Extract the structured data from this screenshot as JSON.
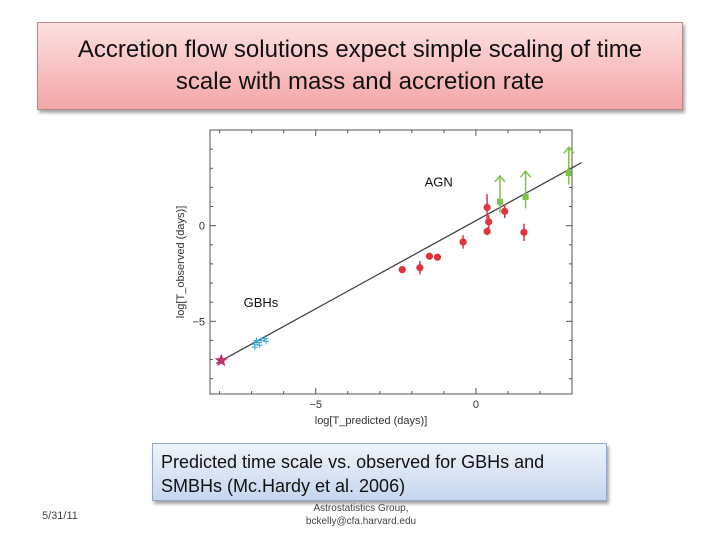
{
  "slide": {
    "title_line1": "Accretion flow solutions expect simple scaling of time",
    "title_line2": "scale with mass and accretion rate",
    "caption_line1": "Predicted time scale vs. observed for GBHs and",
    "caption_line2": "SMBHs (Mc.Hardy et al. 2006)",
    "date": "5/31/11",
    "credit_line1": "Astrostatistics Group,",
    "credit_line2": "bckelly@cfa.harvard.edu"
  },
  "chart_data": {
    "type": "scatter",
    "xlabel": "log[T_predicted (days)]",
    "ylabel": "log[T_observed (days)]",
    "x_ticks": [
      "−5",
      "0"
    ],
    "y_ticks": [
      "0",
      "−5"
    ],
    "xlim": [
      -8.3,
      3.0
    ],
    "ylim": [
      -8.8,
      5.0
    ],
    "annotations": [
      "AGN",
      "GBHs"
    ],
    "colors": {
      "agn": "#e0343c",
      "upper_limit": "#7fc24a",
      "gbh": "#39a9d6",
      "star": "#c0306d",
      "fit_line": "#444444"
    },
    "fit_line": {
      "x": [
        -8.1,
        3.3
      ],
      "y": [
        -7.2,
        3.3
      ]
    },
    "series": [
      {
        "marker": "circle",
        "color": "#e0343c",
        "points": [
          {
            "x": -2.3,
            "y": -2.3,
            "yerr": 0.1
          },
          {
            "x": -1.75,
            "y": -2.2,
            "yerr": 0.35
          },
          {
            "x": -1.2,
            "y": -1.65,
            "yerr": 0.1
          },
          {
            "x": -1.45,
            "y": -1.6,
            "yerr": 0.1
          },
          {
            "x": -0.4,
            "y": -0.85,
            "yerr": 0.35
          },
          {
            "x": 0.35,
            "y": 0.95,
            "yerr": 0.7
          },
          {
            "x": 0.4,
            "y": 0.2,
            "yerr": 0.35
          },
          {
            "x": 0.9,
            "y": 0.75,
            "yerr": 0.35
          },
          {
            "x": 0.35,
            "y": -0.3,
            "yerr": 0.2
          },
          {
            "x": 1.5,
            "y": -0.35,
            "yerr": 0.45
          }
        ]
      },
      {
        "marker": "square",
        "color": "#7fc24a",
        "points": [
          {
            "x": 0.75,
            "y": 1.25,
            "limit": "lower"
          },
          {
            "x": 1.55,
            "y": 1.5,
            "limit": "lower"
          },
          {
            "x": 2.9,
            "y": 2.75,
            "limit": "lower"
          }
        ]
      },
      {
        "marker": "cross",
        "color": "#39a9d6",
        "points": [
          {
            "x": -6.9,
            "y": -6.2
          },
          {
            "x": -6.8,
            "y": -6.1
          },
          {
            "x": -6.7,
            "y": -6.0
          },
          {
            "x": -6.6,
            "y": -5.9
          },
          {
            "x": -6.9,
            "y": -6.35
          },
          {
            "x": -6.75,
            "y": -6.25
          },
          {
            "x": -6.55,
            "y": -6.05
          },
          {
            "x": -6.85,
            "y": -6.0
          }
        ]
      },
      {
        "marker": "star",
        "color": "#c0306d",
        "points": [
          {
            "x": -7.95,
            "y": -7.05
          }
        ]
      }
    ]
  }
}
